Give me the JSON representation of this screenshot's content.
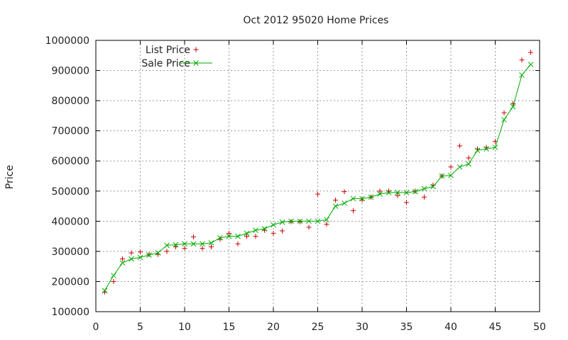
{
  "chart_data": {
    "type": "line",
    "title": "Oct 2012 95020 Home Prices",
    "xlabel": "",
    "ylabel": "Price",
    "xlim": [
      0,
      50
    ],
    "ylim": [
      100000,
      1000000
    ],
    "xticks": [
      0,
      5,
      10,
      15,
      20,
      25,
      30,
      35,
      40,
      45,
      50
    ],
    "yticks": [
      100000,
      200000,
      300000,
      400000,
      500000,
      600000,
      700000,
      800000,
      900000,
      1000000
    ],
    "grid": true,
    "legend_position": "top-left",
    "series": [
      {
        "name": "List Price",
        "style": "points-plus",
        "color": "#cc0000",
        "x": [
          1,
          2,
          3,
          4,
          5,
          6,
          7,
          8,
          9,
          10,
          11,
          12,
          13,
          14,
          15,
          16,
          17,
          18,
          19,
          20,
          21,
          22,
          23,
          24,
          25,
          26,
          27,
          28,
          29,
          30,
          31,
          32,
          33,
          34,
          35,
          36,
          37,
          38,
          39,
          40,
          41,
          42,
          43,
          44,
          45,
          46,
          47,
          48,
          49
        ],
        "values": [
          165000,
          200000,
          275000,
          295000,
          298000,
          290000,
          290000,
          300000,
          315000,
          310000,
          348000,
          310000,
          315000,
          340000,
          360000,
          325000,
          350000,
          350000,
          370000,
          360000,
          368000,
          398000,
          398000,
          380000,
          490000,
          390000,
          470000,
          498000,
          435000,
          470000,
          480000,
          500000,
          500000,
          485000,
          462000,
          500000,
          480000,
          520000,
          550000,
          580000,
          650000,
          610000,
          640000,
          645000,
          665000,
          760000,
          790000,
          935000,
          960000
        ]
      },
      {
        "name": "Sale Price",
        "style": "linespoints-x",
        "color": "#00aa00",
        "x": [
          1,
          2,
          3,
          4,
          5,
          6,
          7,
          8,
          9,
          10,
          11,
          12,
          13,
          14,
          15,
          16,
          17,
          18,
          19,
          20,
          21,
          22,
          23,
          24,
          25,
          26,
          27,
          28,
          29,
          30,
          31,
          32,
          33,
          34,
          35,
          36,
          37,
          38,
          39,
          40,
          41,
          42,
          43,
          44,
          45,
          46,
          47,
          48,
          49
        ],
        "values": [
          170000,
          220000,
          262000,
          275000,
          280000,
          288000,
          295000,
          320000,
          322000,
          325000,
          325000,
          325000,
          328000,
          345000,
          350000,
          350000,
          360000,
          370000,
          375000,
          388000,
          397000,
          400000,
          400000,
          400000,
          400000,
          405000,
          450000,
          460000,
          475000,
          475000,
          480000,
          490000,
          495000,
          495000,
          495000,
          498000,
          508000,
          515000,
          550000,
          552000,
          580000,
          590000,
          635000,
          640000,
          645000,
          737000,
          780000,
          885000,
          920000
        ]
      }
    ]
  }
}
